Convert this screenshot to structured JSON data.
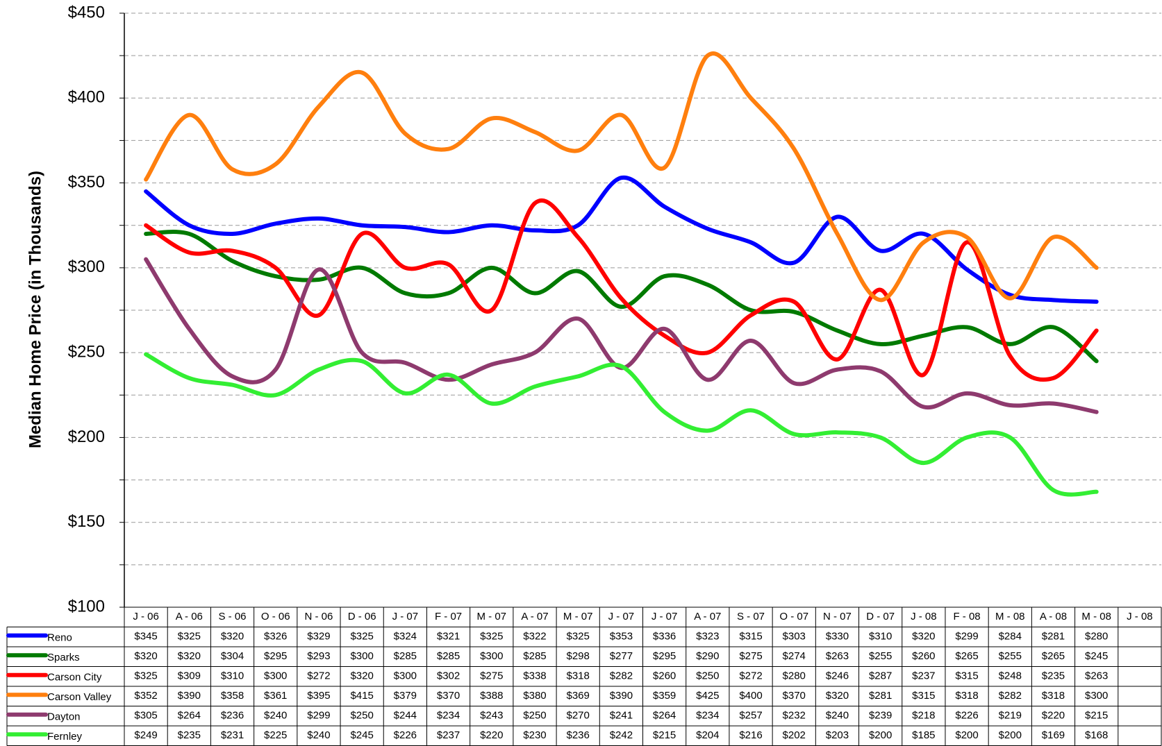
{
  "chart_data": {
    "type": "line",
    "y_label": "Median Home Price (in Thousands)",
    "categories": [
      "J - 06",
      "A - 06",
      "S - 06",
      "O - 06",
      "N - 06",
      "D - 06",
      "J - 07",
      "F - 07",
      "M - 07",
      "A - 07",
      "M - 07",
      "J - 07",
      "J - 07",
      "A - 07",
      "S - 07",
      "O - 07",
      "N - 07",
      "D - 07",
      "J - 08",
      "F - 08",
      "M - 08",
      "A - 08",
      "M - 08",
      "J - 08"
    ],
    "ylim": [
      100,
      450
    ],
    "yticks": [
      {
        "value": 100,
        "label": "$100"
      },
      {
        "value": 150,
        "label": "$150"
      },
      {
        "value": 200,
        "label": "$200"
      },
      {
        "value": 250,
        "label": "$250"
      },
      {
        "value": 300,
        "label": "$300"
      },
      {
        "value": 350,
        "label": "$350"
      },
      {
        "value": 400,
        "label": "$400"
      },
      {
        "value": 450,
        "label": "$450"
      }
    ],
    "minor_yticks": [
      125,
      175,
      225,
      275,
      325,
      375,
      425
    ],
    "grid": true,
    "smooth": true,
    "series": [
      {
        "name": "Reno",
        "color": "#0000ff",
        "values": [
          345,
          325,
          320,
          326,
          329,
          325,
          324,
          321,
          325,
          322,
          325,
          353,
          336,
          323,
          315,
          303,
          330,
          310,
          320,
          299,
          284,
          281,
          280,
          null
        ],
        "value_labels": [
          "$345",
          "$325",
          "$320",
          "$326",
          "$329",
          "$325",
          "$324",
          "$321",
          "$325",
          "$322",
          "$325",
          "$353",
          "$336",
          "$323",
          "$315",
          "$303",
          "$330",
          "$310",
          "$320",
          "$299",
          "$284",
          "$281",
          "$280",
          null
        ]
      },
      {
        "name": "Sparks",
        "color": "#007a00",
        "values": [
          320,
          320,
          304,
          295,
          293,
          300,
          285,
          285,
          300,
          285,
          298,
          277,
          295,
          290,
          275,
          274,
          263,
          255,
          260,
          265,
          255,
          265,
          245,
          null
        ],
        "value_labels": [
          "$320",
          "$320",
          "$304",
          "$295",
          "$293",
          "$300",
          "$285",
          "$285",
          "$300",
          "$285",
          "$298",
          "$277",
          "$295",
          "$290",
          "$275",
          "$274",
          "$263",
          "$255",
          "$260",
          "$265",
          "$255",
          "$265",
          "$245",
          null
        ]
      },
      {
        "name": "Carson City",
        "color": "#ff0000",
        "values": [
          325,
          309,
          310,
          300,
          272,
          320,
          300,
          302,
          275,
          338,
          318,
          282,
          260,
          250,
          272,
          280,
          246,
          287,
          237,
          315,
          248,
          235,
          263,
          null
        ],
        "value_labels": [
          "$325",
          "$309",
          "$310",
          "$300",
          "$272",
          "$320",
          "$300",
          "$302",
          "$275",
          "$338",
          "$318",
          "$282",
          "$260",
          "$250",
          "$272",
          "$280",
          "$246",
          "$287",
          "$237",
          "$315",
          "$248",
          "$235",
          "$263",
          null
        ]
      },
      {
        "name": "Carson Valley",
        "color": "#ff7f0e",
        "values": [
          352,
          390,
          358,
          361,
          395,
          415,
          379,
          370,
          388,
          380,
          369,
          390,
          359,
          425,
          400,
          370,
          320,
          281,
          315,
          318,
          282,
          318,
          300,
          null
        ],
        "value_labels": [
          "$352",
          "$390",
          "$358",
          "$361",
          "$395",
          "$415",
          "$379",
          "$370",
          "$388",
          "$380",
          "$369",
          "$390",
          "$359",
          "$425",
          "$400",
          "$370",
          "$320",
          "$281",
          "$315",
          "$318",
          "$282",
          "$318",
          "$300",
          null
        ]
      },
      {
        "name": "Dayton",
        "color": "#8e3a6e",
        "values": [
          305,
          264,
          236,
          240,
          299,
          250,
          244,
          234,
          243,
          250,
          270,
          241,
          264,
          234,
          257,
          232,
          240,
          239,
          218,
          226,
          219,
          220,
          215,
          null
        ],
        "value_labels": [
          "$305",
          "$264",
          "$236",
          "$240",
          "$299",
          "$250",
          "$244",
          "$234",
          "$243",
          "$250",
          "$270",
          "$241",
          "$264",
          "$234",
          "$257",
          "$232",
          "$240",
          "$239",
          "$218",
          "$226",
          "$219",
          "$220",
          "$215",
          null
        ]
      },
      {
        "name": "Fernley",
        "color": "#33ee33",
        "values": [
          249,
          235,
          231,
          225,
          240,
          245,
          226,
          237,
          220,
          230,
          236,
          242,
          215,
          204,
          216,
          202,
          203,
          200,
          185,
          200,
          200,
          169,
          168,
          null
        ],
        "value_labels": [
          "$249",
          "$235",
          "$231",
          "$225",
          "$240",
          "$245",
          "$226",
          "$237",
          "$220",
          "$230",
          "$236",
          "$242",
          "$215",
          "$204",
          "$216",
          "$202",
          "$203",
          "$200",
          "$185",
          "$200",
          "$200",
          "$169",
          "$168",
          null
        ]
      }
    ]
  }
}
